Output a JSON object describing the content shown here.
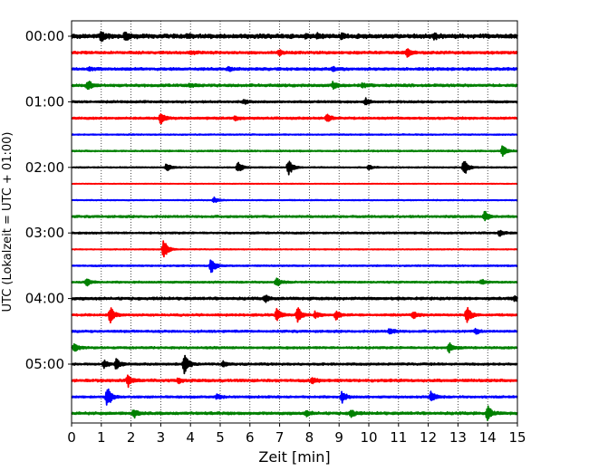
{
  "chart_data": {
    "type": "line",
    "subtype": "helicorder",
    "xlabel": "Zeit  [min]",
    "ylabel": "UTC (Lokalzeit = UTC + 01:00)",
    "xlim": [
      0,
      15
    ],
    "x_ticks": [
      "0",
      "1",
      "2",
      "3",
      "4",
      "5",
      "6",
      "7",
      "8",
      "9",
      "10",
      "11",
      "12",
      "13",
      "14",
      "15"
    ],
    "y_tick_labels": [
      "00:00",
      "01:00",
      "02:00",
      "03:00",
      "04:00",
      "05:00"
    ],
    "y_tick_trace_index": [
      0,
      4,
      8,
      12,
      16,
      20
    ],
    "minutes_per_trace": 15,
    "trace_count": 24,
    "trace_colors": [
      "#000000",
      "#ff0000",
      "#0000ff",
      "#008000"
    ],
    "grid": "vertical dotted lines at each minute",
    "traces": [
      {
        "start": "00:00",
        "color": "#000000",
        "noise": 0.25,
        "events": [
          [
            1.0,
            0.5
          ],
          [
            1.8,
            0.45
          ],
          [
            3.9,
            0.25
          ],
          [
            7.9,
            0.2
          ],
          [
            8.3,
            0.3
          ],
          [
            9.1,
            0.25
          ],
          [
            12.2,
            0.3
          ]
        ]
      },
      {
        "start": "00:15",
        "color": "#ff0000",
        "noise": 0.15,
        "events": [
          [
            4.0,
            0.2
          ],
          [
            7.0,
            0.25
          ],
          [
            11.3,
            0.5
          ]
        ]
      },
      {
        "start": "00:30",
        "color": "#0000ff",
        "noise": 0.15,
        "events": [
          [
            0.6,
            0.2
          ],
          [
            5.3,
            0.2
          ],
          [
            8.8,
            0.2
          ]
        ]
      },
      {
        "start": "00:45",
        "color": "#008000",
        "noise": 0.15,
        "events": [
          [
            0.55,
            0.6
          ],
          [
            4.0,
            0.2
          ],
          [
            8.8,
            0.4
          ],
          [
            9.8,
            0.25
          ]
        ]
      },
      {
        "start": "01:00",
        "color": "#000000",
        "noise": 0.12,
        "events": [
          [
            5.8,
            0.2
          ],
          [
            9.9,
            0.4
          ]
        ]
      },
      {
        "start": "01:15",
        "color": "#ff0000",
        "noise": 0.12,
        "events": [
          [
            3.0,
            0.7
          ],
          [
            5.5,
            0.25
          ],
          [
            8.6,
            0.5
          ]
        ]
      },
      {
        "start": "01:30",
        "color": "#0000ff",
        "noise": 0.06,
        "events": []
      },
      {
        "start": "01:45",
        "color": "#008000",
        "noise": 0.08,
        "events": [
          [
            14.5,
            0.7
          ]
        ]
      },
      {
        "start": "02:00",
        "color": "#000000",
        "noise": 0.06,
        "events": [
          [
            3.2,
            0.5
          ],
          [
            5.6,
            0.6
          ],
          [
            7.3,
            1.0
          ],
          [
            10.0,
            0.25
          ],
          [
            13.2,
            1.0
          ]
        ]
      },
      {
        "start": "02:15",
        "color": "#ff0000",
        "noise": 0.03,
        "events": []
      },
      {
        "start": "02:30",
        "color": "#0000ff",
        "noise": 0.05,
        "events": [
          [
            4.8,
            0.3
          ]
        ]
      },
      {
        "start": "02:45",
        "color": "#008000",
        "noise": 0.12,
        "events": [
          [
            13.9,
            0.6
          ]
        ]
      },
      {
        "start": "03:00",
        "color": "#000000",
        "noise": 0.1,
        "events": [
          [
            14.4,
            0.3
          ]
        ]
      },
      {
        "start": "03:15",
        "color": "#ff0000",
        "noise": 0.05,
        "events": [
          [
            3.1,
            1.1
          ]
        ]
      },
      {
        "start": "03:30",
        "color": "#0000ff",
        "noise": 0.08,
        "events": [
          [
            4.7,
            0.9
          ]
        ]
      },
      {
        "start": "03:45",
        "color": "#008000",
        "noise": 0.1,
        "events": [
          [
            0.5,
            0.5
          ],
          [
            6.9,
            0.5
          ],
          [
            13.8,
            0.3
          ]
        ]
      },
      {
        "start": "04:00",
        "color": "#000000",
        "noise": 0.15,
        "events": [
          [
            6.5,
            0.4
          ],
          [
            14.9,
            0.3
          ]
        ]
      },
      {
        "start": "04:15",
        "color": "#ff0000",
        "noise": 0.12,
        "events": [
          [
            1.3,
            0.9
          ],
          [
            6.9,
            0.7
          ],
          [
            7.6,
            0.9
          ],
          [
            8.2,
            0.4
          ],
          [
            8.9,
            0.5
          ],
          [
            11.5,
            0.4
          ],
          [
            13.3,
            1.0
          ]
        ]
      },
      {
        "start": "04:30",
        "color": "#0000ff",
        "noise": 0.12,
        "events": [
          [
            10.7,
            0.4
          ],
          [
            13.6,
            0.3
          ]
        ]
      },
      {
        "start": "04:45",
        "color": "#008000",
        "noise": 0.12,
        "events": [
          [
            0.1,
            0.5
          ],
          [
            12.7,
            0.6
          ]
        ]
      },
      {
        "start": "05:00",
        "color": "#000000",
        "noise": 0.12,
        "events": [
          [
            1.1,
            0.4
          ],
          [
            1.5,
            0.6
          ],
          [
            3.8,
            1.2
          ],
          [
            5.1,
            0.25
          ]
        ]
      },
      {
        "start": "05:15",
        "color": "#ff0000",
        "noise": 0.15,
        "events": [
          [
            1.9,
            0.7
          ],
          [
            3.6,
            0.25
          ],
          [
            8.1,
            0.3
          ]
        ]
      },
      {
        "start": "05:30",
        "color": "#0000ff",
        "noise": 0.12,
        "events": [
          [
            1.2,
            1.3
          ],
          [
            9.1,
            0.6
          ],
          [
            12.1,
            0.7
          ],
          [
            4.9,
            0.25
          ]
        ]
      },
      {
        "start": "05:45",
        "color": "#008000",
        "noise": 0.15,
        "events": [
          [
            2.1,
            0.5
          ],
          [
            9.4,
            0.4
          ],
          [
            14.0,
            0.9
          ],
          [
            7.9,
            0.3
          ]
        ]
      }
    ]
  }
}
